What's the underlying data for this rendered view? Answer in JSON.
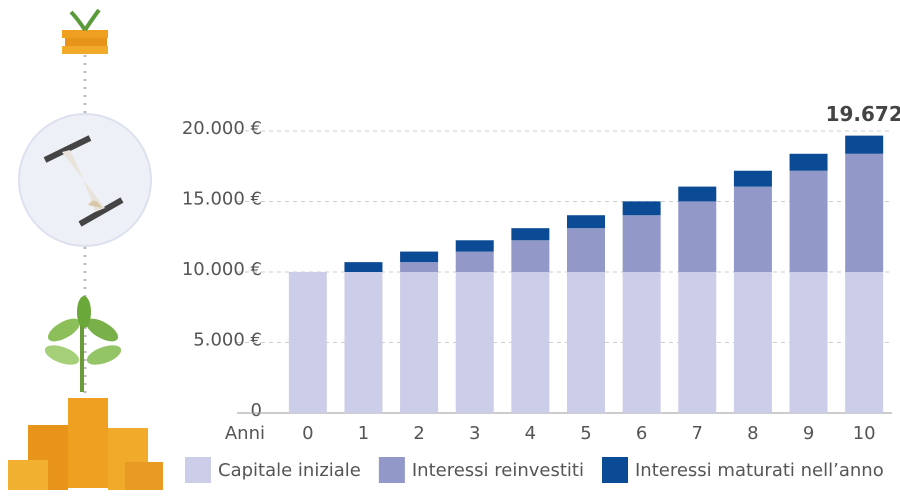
{
  "chart_data": {
    "type": "stacked-bar",
    "x_label": "Anni",
    "categories": [
      "0",
      "1",
      "2",
      "3",
      "4",
      "5",
      "6",
      "7",
      "8",
      "9",
      "10"
    ],
    "series": [
      {
        "name": "Capitale iniziale",
        "color": "#cccde8",
        "values": [
          10000,
          10000,
          10000,
          10000,
          10000,
          10000,
          10000,
          10000,
          10000,
          10000,
          10000
        ]
      },
      {
        "name": "Interessi reinvestiti",
        "color": "#9299c9",
        "values": [
          0,
          0,
          700,
          1449,
          2250,
          3108,
          4026,
          5007,
          6058,
          7182,
          8385
        ]
      },
      {
        "name": "Interessi maturati nell’anno",
        "color": "#0b4a94",
        "values": [
          0,
          700,
          749,
          801,
          858,
          918,
          982,
          1050,
          1124,
          1203,
          1287
        ]
      }
    ],
    "annotations": [
      {
        "label": "19.672",
        "value": 19672,
        "category": "10"
      }
    ],
    "ylim": [
      0,
      20000
    ],
    "yticks": [
      0,
      {
        "value": 5000,
        "label": "5.000 €"
      },
      {
        "value": 10000,
        "label": "10.000 €"
      },
      {
        "value": 15000,
        "label": "15.000 €"
      },
      {
        "value": 20000,
        "label": "20.000 €"
      }
    ],
    "grid": true
  }
}
